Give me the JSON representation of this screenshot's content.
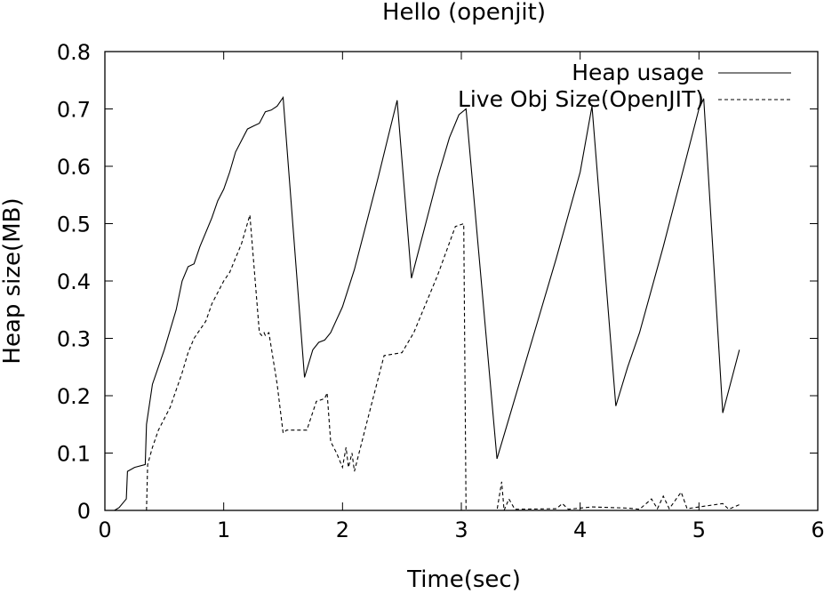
{
  "chart_data": {
    "type": "line",
    "title": "Hello (openjit)",
    "xlabel": "Time(sec)",
    "ylabel": "Heap size(MB)",
    "xlim": [
      0,
      6
    ],
    "ylim": [
      0,
      0.8
    ],
    "xticks": [
      "0",
      "1",
      "2",
      "3",
      "4",
      "5",
      "6"
    ],
    "yticks": [
      "0",
      "0.1",
      "0.2",
      "0.3",
      "0.4",
      "0.5",
      "0.6",
      "0.7",
      "0.8"
    ],
    "grid": false,
    "legend_position": "top-right",
    "series": [
      {
        "name": "Heap usage",
        "style": "solid",
        "points": [
          [
            0.08,
            0.0
          ],
          [
            0.12,
            0.005
          ],
          [
            0.18,
            0.02
          ],
          [
            0.19,
            0.068
          ],
          [
            0.25,
            0.075
          ],
          [
            0.34,
            0.08
          ],
          [
            0.35,
            0.15
          ],
          [
            0.4,
            0.22
          ],
          [
            0.5,
            0.28
          ],
          [
            0.6,
            0.35
          ],
          [
            0.65,
            0.4
          ],
          [
            0.7,
            0.425
          ],
          [
            0.75,
            0.43
          ],
          [
            0.8,
            0.46
          ],
          [
            0.9,
            0.51
          ],
          [
            0.95,
            0.54
          ],
          [
            1.0,
            0.56
          ],
          [
            1.05,
            0.59
          ],
          [
            1.1,
            0.625
          ],
          [
            1.15,
            0.645
          ],
          [
            1.2,
            0.665
          ],
          [
            1.25,
            0.67
          ],
          [
            1.3,
            0.675
          ],
          [
            1.35,
            0.695
          ],
          [
            1.4,
            0.698
          ],
          [
            1.45,
            0.705
          ],
          [
            1.5,
            0.72
          ],
          [
            1.68,
            0.232
          ],
          [
            1.75,
            0.28
          ],
          [
            1.8,
            0.293
          ],
          [
            1.85,
            0.297
          ],
          [
            1.9,
            0.31
          ],
          [
            2.0,
            0.355
          ],
          [
            2.1,
            0.42
          ],
          [
            2.2,
            0.5
          ],
          [
            2.3,
            0.58
          ],
          [
            2.4,
            0.665
          ],
          [
            2.46,
            0.715
          ],
          [
            2.58,
            0.405
          ],
          [
            2.7,
            0.5
          ],
          [
            2.8,
            0.58
          ],
          [
            2.9,
            0.65
          ],
          [
            2.98,
            0.69
          ],
          [
            3.04,
            0.7
          ],
          [
            3.3,
            0.09
          ],
          [
            3.4,
            0.16
          ],
          [
            3.6,
            0.3
          ],
          [
            3.8,
            0.44
          ],
          [
            4.0,
            0.59
          ],
          [
            4.1,
            0.705
          ],
          [
            4.3,
            0.182
          ],
          [
            4.4,
            0.25
          ],
          [
            4.5,
            0.31
          ],
          [
            4.7,
            0.46
          ],
          [
            4.9,
            0.62
          ],
          [
            5.0,
            0.7
          ],
          [
            5.04,
            0.718
          ],
          [
            5.2,
            0.17
          ],
          [
            5.34,
            0.28
          ]
        ]
      },
      {
        "name": "Live Obj Size(OpenJIT)",
        "style": "dashed",
        "points": [
          [
            0.35,
            0.0
          ],
          [
            0.36,
            0.08
          ],
          [
            0.4,
            0.11
          ],
          [
            0.45,
            0.14
          ],
          [
            0.55,
            0.18
          ],
          [
            0.65,
            0.24
          ],
          [
            0.7,
            0.275
          ],
          [
            0.75,
            0.3
          ],
          [
            0.85,
            0.33
          ],
          [
            0.9,
            0.36
          ],
          [
            0.95,
            0.38
          ],
          [
            1.0,
            0.4
          ],
          [
            1.05,
            0.415
          ],
          [
            1.1,
            0.44
          ],
          [
            1.15,
            0.465
          ],
          [
            1.22,
            0.515
          ],
          [
            1.3,
            0.31
          ],
          [
            1.32,
            0.305
          ],
          [
            1.34,
            0.31
          ],
          [
            1.35,
            0.305
          ],
          [
            1.38,
            0.31
          ],
          [
            1.45,
            0.22
          ],
          [
            1.5,
            0.135
          ],
          [
            1.53,
            0.14
          ],
          [
            1.7,
            0.14
          ],
          [
            1.78,
            0.19
          ],
          [
            1.85,
            0.195
          ],
          [
            1.87,
            0.205
          ],
          [
            1.9,
            0.12
          ],
          [
            1.95,
            0.1
          ],
          [
            2.0,
            0.075
          ],
          [
            2.03,
            0.11
          ],
          [
            2.05,
            0.075
          ],
          [
            2.08,
            0.1
          ],
          [
            2.1,
            0.068
          ],
          [
            2.2,
            0.15
          ],
          [
            2.35,
            0.27
          ],
          [
            2.5,
            0.275
          ],
          [
            2.6,
            0.31
          ],
          [
            2.8,
            0.41
          ],
          [
            2.95,
            0.495
          ],
          [
            3.02,
            0.5
          ],
          [
            3.04,
            0.0
          ],
          [
            3.3,
            0.0
          ],
          [
            3.34,
            0.05
          ],
          [
            3.36,
            0.0
          ],
          [
            3.4,
            0.02
          ],
          [
            3.45,
            0.002
          ],
          [
            3.8,
            0.003
          ],
          [
            3.85,
            0.012
          ],
          [
            3.9,
            0.002
          ],
          [
            4.1,
            0.006
          ],
          [
            4.4,
            0.004
          ],
          [
            4.5,
            0.002
          ],
          [
            4.6,
            0.02
          ],
          [
            4.65,
            0.003
          ],
          [
            4.7,
            0.025
          ],
          [
            4.75,
            0.003
          ],
          [
            4.85,
            0.032
          ],
          [
            4.9,
            0.003
          ],
          [
            5.0,
            0.006
          ],
          [
            5.2,
            0.012
          ],
          [
            5.25,
            0.002
          ],
          [
            5.34,
            0.01
          ]
        ]
      }
    ]
  }
}
